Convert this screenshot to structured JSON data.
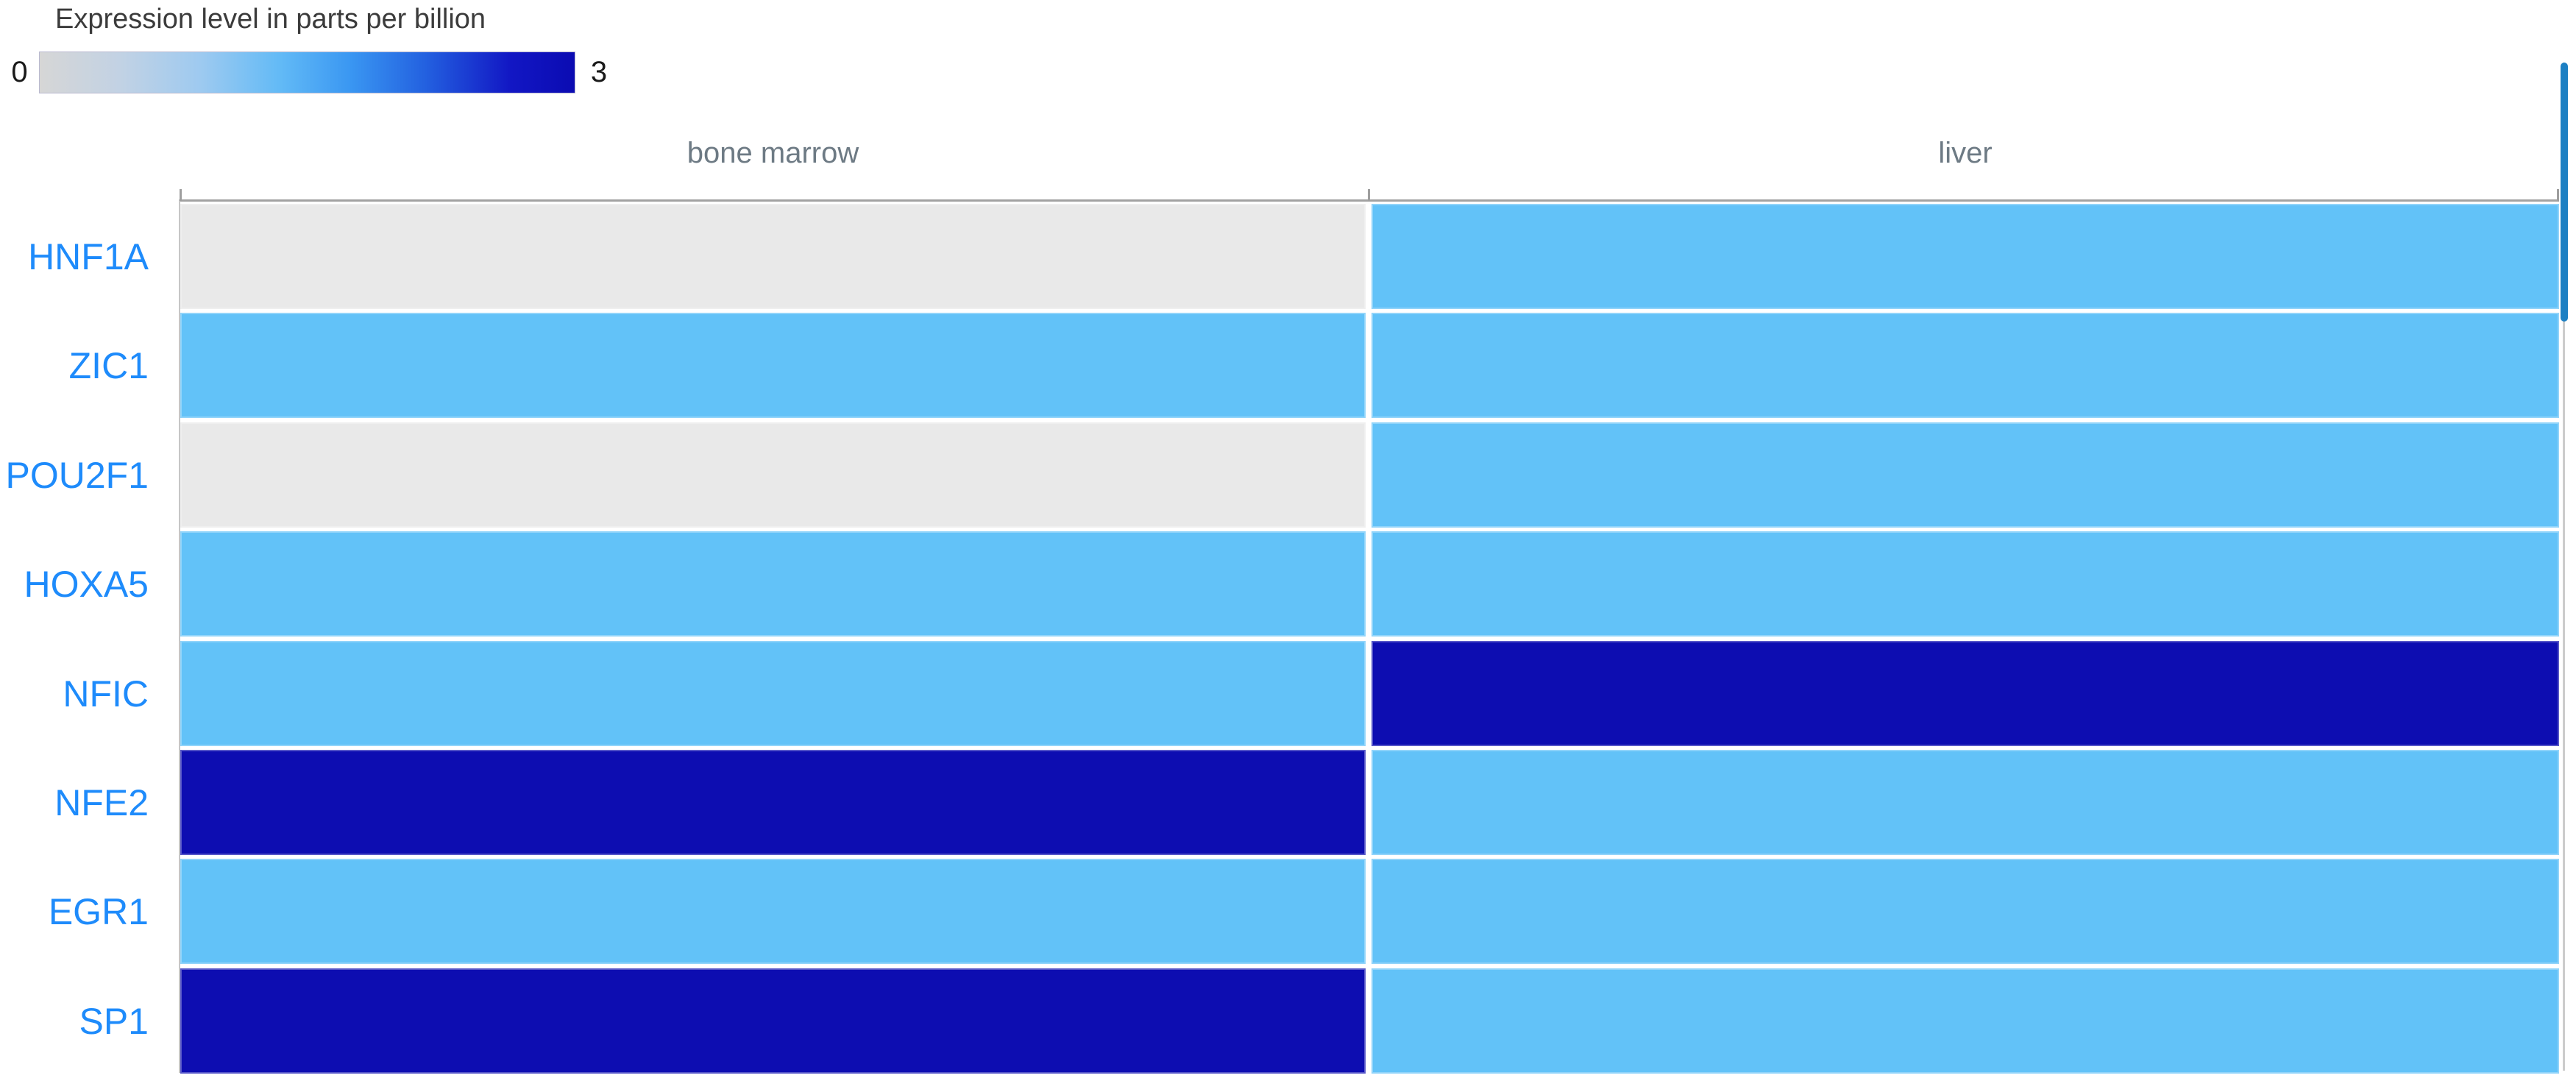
{
  "legend": {
    "title": "Expression level in parts per billion",
    "min_label": "0",
    "max_label": "3",
    "gradient_stops": [
      "#d6d6d6",
      "#9ecaf0",
      "#62baf6",
      "#2361e0",
      "#0b0bb2"
    ]
  },
  "colors": {
    "cell_low": "#e9e9e9",
    "cell_mid": "#62c2f8",
    "cell_high": "#0d0db1",
    "row_label": "#1e8bfb",
    "column_header": "#6d7a84",
    "axis": "#a2a2a2",
    "scrollbar_thumb": "#1d80c3",
    "scrollbar_track": "#cccccc"
  },
  "chart_data": {
    "type": "heatmap",
    "title": "Expression level in parts per billion",
    "columns": [
      "bone marrow",
      "liver"
    ],
    "rows": [
      "HNF1A",
      "ZIC1",
      "POU2F1",
      "HOXA5",
      "NFIC",
      "NFE2",
      "EGR1",
      "SP1"
    ],
    "scale": {
      "min": 0,
      "max": 3,
      "min_label": "0",
      "max_label": "3"
    },
    "values": [
      [
        0,
        1
      ],
      [
        1,
        1
      ],
      [
        0,
        1
      ],
      [
        1,
        1
      ],
      [
        1,
        3
      ],
      [
        3,
        1
      ],
      [
        1,
        1
      ],
      [
        3,
        1
      ]
    ],
    "cell_colors": [
      [
        "#e9e9e9",
        "#62c2f8"
      ],
      [
        "#62c2f8",
        "#62c2f8"
      ],
      [
        "#e9e9e9",
        "#62c2f8"
      ],
      [
        "#62c2f8",
        "#62c2f8"
      ],
      [
        "#62c2f8",
        "#0d0db1"
      ],
      [
        "#0d0db1",
        "#62c2f8"
      ],
      [
        "#62c2f8",
        "#62c2f8"
      ],
      [
        "#0d0db1",
        "#62c2f8"
      ]
    ],
    "legend_position": "top-left",
    "grid": false
  }
}
